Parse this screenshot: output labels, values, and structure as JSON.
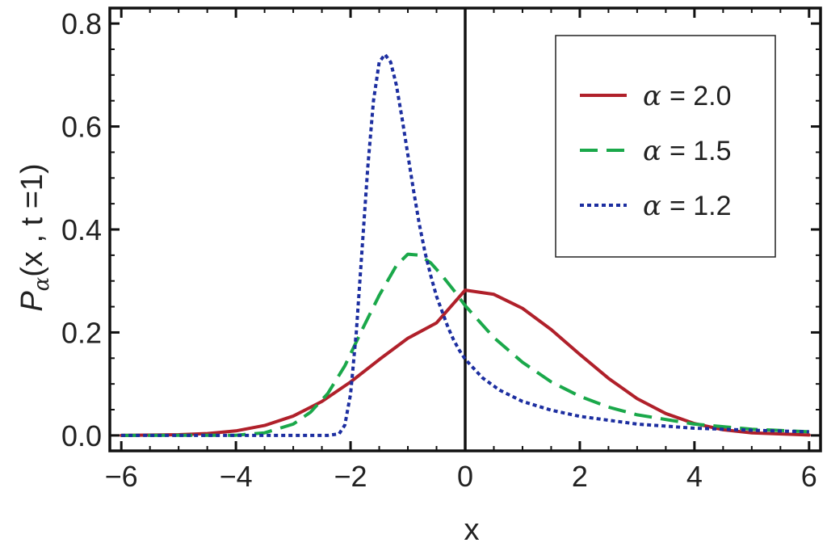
{
  "chart_data": {
    "type": "line",
    "xlabel": "x",
    "ylabel": {
      "prefix": "P",
      "subscript": "α",
      "args": "(x , t =1)"
    },
    "xlim": [
      -6.2,
      6.2
    ],
    "ylim": [
      -0.03,
      0.83
    ],
    "xticks": [
      -6,
      -4,
      -2,
      0,
      2,
      4,
      6
    ],
    "xtick_labels": [
      "−6",
      "−4",
      "−2",
      "0",
      "2",
      "4",
      "6"
    ],
    "yticks": [
      0.0,
      0.2,
      0.4,
      0.6,
      0.8
    ],
    "ytick_labels": [
      "0.0",
      "0.2",
      "0.4",
      "0.6",
      "0.8"
    ],
    "grid": false,
    "vertical_line_at_x": 0,
    "legend_position": "top-right",
    "series": [
      {
        "name": "α = 2.0",
        "legend_symbol": "α",
        "legend_value": "= 2.0",
        "color": "#b0202a",
        "style": "solid",
        "x": [
          -6,
          -5,
          -4.5,
          -4,
          -3.5,
          -3,
          -2.5,
          -2,
          -1.5,
          -1,
          -0.5,
          0,
          0.5,
          1,
          1.5,
          2,
          2.5,
          3,
          3.5,
          4,
          4.5,
          5,
          6
        ],
        "y": [
          0.0001,
          0.0013,
          0.0036,
          0.0088,
          0.0193,
          0.0376,
          0.0659,
          0.1038,
          0.1473,
          0.1887,
          0.2186,
          0.2821,
          0.274,
          0.2468,
          0.2056,
          0.1573,
          0.1109,
          0.0714,
          0.0425,
          0.023,
          0.011,
          0.005,
          0.0008
        ]
      },
      {
        "name": "α = 1.5",
        "legend_symbol": "α",
        "legend_value": "= 1.5",
        "color": "#1aa84a",
        "style": "dashed",
        "x": [
          -6,
          -4,
          -3.5,
          -3,
          -2.7,
          -2.4,
          -2.1,
          -1.8,
          -1.5,
          -1.2,
          -1.0,
          -0.8,
          -0.6,
          -0.4,
          -0.2,
          0,
          0.5,
          1,
          1.5,
          2,
          2.5,
          3,
          4,
          5,
          6
        ],
        "y": [
          0.0,
          0.0003,
          0.005,
          0.022,
          0.045,
          0.081,
          0.135,
          0.205,
          0.272,
          0.33,
          0.352,
          0.35,
          0.335,
          0.31,
          0.282,
          0.252,
          0.19,
          0.142,
          0.104,
          0.076,
          0.055,
          0.04,
          0.022,
          0.012,
          0.007
        ]
      },
      {
        "name": "α = 1.2",
        "legend_symbol": "α",
        "legend_value": "= 1.2",
        "color": "#1c2ea0",
        "style": "dotted",
        "x": [
          -6,
          -3,
          -2.4,
          -2.2,
          -2.1,
          -2.0,
          -1.9,
          -1.8,
          -1.7,
          -1.6,
          -1.5,
          -1.4,
          -1.3,
          -1.2,
          -1.1,
          -1.0,
          -0.9,
          -0.8,
          -0.7,
          -0.6,
          -0.5,
          -0.4,
          -0.3,
          -0.2,
          -0.1,
          0,
          0.3,
          0.6,
          1,
          1.5,
          2,
          3,
          4,
          5,
          6
        ],
        "y": [
          0.0,
          0.0,
          0.0,
          0.003,
          0.02,
          0.08,
          0.2,
          0.36,
          0.52,
          0.65,
          0.725,
          0.74,
          0.725,
          0.68,
          0.615,
          0.545,
          0.475,
          0.41,
          0.355,
          0.31,
          0.27,
          0.24,
          0.21,
          0.185,
          0.165,
          0.148,
          0.112,
          0.088,
          0.066,
          0.049,
          0.037,
          0.022,
          0.014,
          0.01,
          0.007
        ]
      }
    ]
  }
}
